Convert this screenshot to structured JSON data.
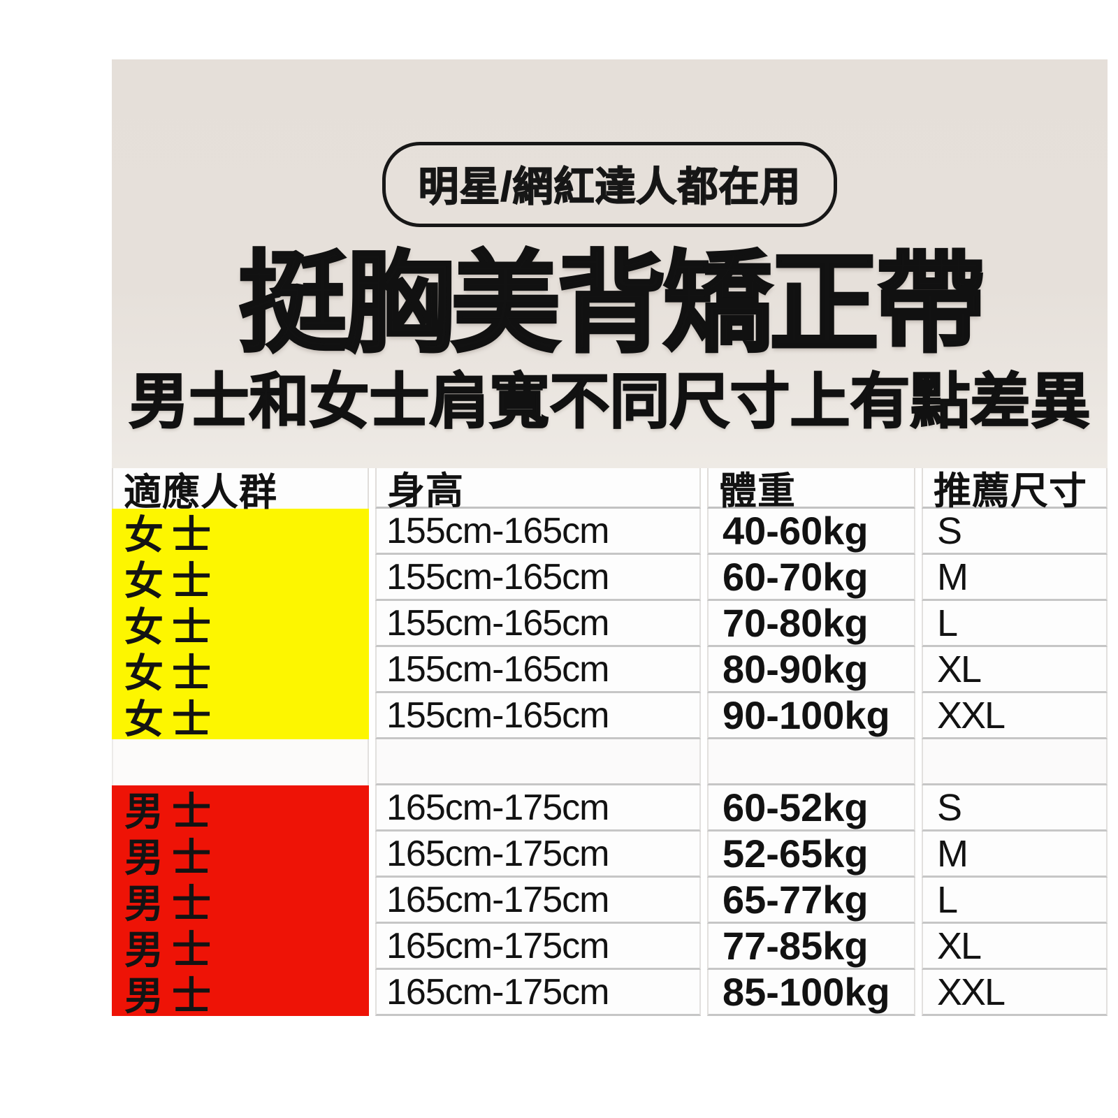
{
  "hero": {
    "badge_label": "明星/網紅達人都在用",
    "title": "挺胸美背矯正帶",
    "subtitle": "男士和女士肩寬不同尺寸上有點差異"
  },
  "table": {
    "headers": {
      "group": "適應人群",
      "height": "身高",
      "weight": "體重",
      "size": "推薦尺寸"
    },
    "groups": {
      "women": {
        "label": "女士",
        "bg_color": "#fdf600"
      },
      "men": {
        "label": "男士",
        "bg_color": "#ee1306"
      }
    },
    "women_rows": [
      {
        "height": "155cm-165cm",
        "weight": "40-60kg",
        "size": "S"
      },
      {
        "height": "155cm-165cm",
        "weight": "60-70kg",
        "size": "M"
      },
      {
        "height": "155cm-165cm",
        "weight": "70-80kg",
        "size": "L"
      },
      {
        "height": "155cm-165cm",
        "weight": "80-90kg",
        "size": "XL"
      },
      {
        "height": "155cm-165cm",
        "weight": "90-100kg",
        "size": "XXL"
      }
    ],
    "men_rows": [
      {
        "height": "165cm-175cm",
        "weight": "60-52kg",
        "size": "S"
      },
      {
        "height": "165cm-175cm",
        "weight": "52-65kg",
        "size": "M"
      },
      {
        "height": "165cm-175cm",
        "weight": "65-77kg",
        "size": "L"
      },
      {
        "height": "165cm-175cm",
        "weight": "77-85kg",
        "size": "XL"
      },
      {
        "height": "165cm-175cm",
        "weight": "85-100kg",
        "size": "XXL"
      }
    ]
  },
  "colors": {
    "hero_bg": "#e5dfd9",
    "cell_bg": "#fdfdfd",
    "grid_line": "#c6c6c6",
    "text": "#121212",
    "women_bg": "#fdf600",
    "men_bg": "#ee1306"
  }
}
